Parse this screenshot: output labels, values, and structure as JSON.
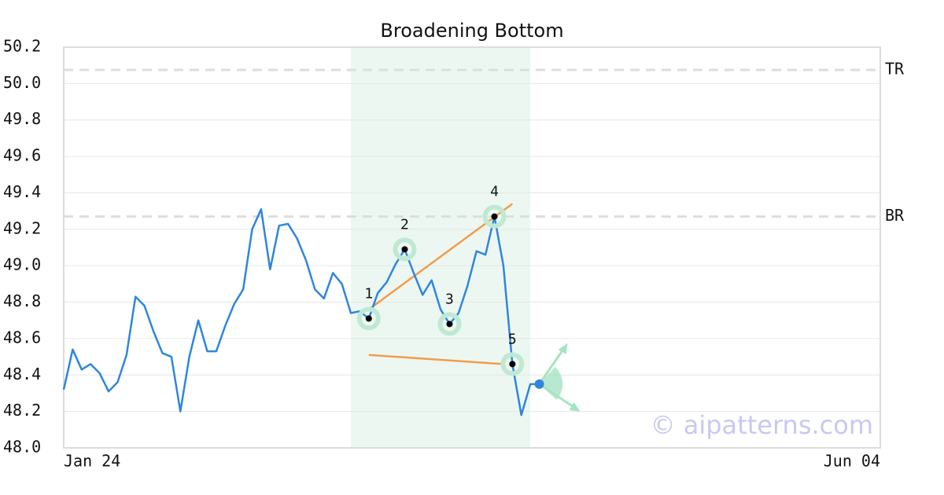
{
  "chart_data": {
    "type": "line",
    "title": "Broadening Bottom",
    "x": [
      0,
      1,
      2,
      3,
      4,
      5,
      6,
      7,
      8,
      9,
      10,
      11,
      12,
      13,
      14,
      15,
      16,
      17,
      18,
      19,
      20,
      21,
      22,
      23,
      24,
      25,
      26,
      27,
      28,
      29,
      30,
      31,
      32,
      33,
      34,
      35,
      36,
      37,
      38,
      39,
      40,
      41,
      42,
      43,
      44,
      45,
      46,
      47,
      48,
      49,
      50,
      51,
      52,
      53
    ],
    "series": [
      {
        "color": "#2e86de",
        "values": [
          48.32,
          48.54,
          48.43,
          48.46,
          48.41,
          48.31,
          48.36,
          48.51,
          48.83,
          48.78,
          48.64,
          48.52,
          48.5,
          48.2,
          48.5,
          48.7,
          48.53,
          48.53,
          48.67,
          48.79,
          48.87,
          49.2,
          49.31,
          48.98,
          49.22,
          49.23,
          49.15,
          49.03,
          48.87,
          48.82,
          48.96,
          48.9,
          48.74,
          48.75,
          48.71,
          48.85,
          48.91,
          49.01,
          49.09,
          48.96,
          48.84,
          48.92,
          48.76,
          48.68,
          48.74,
          48.89,
          49.08,
          49.06,
          49.27,
          49.0,
          48.46,
          48.18,
          48.35,
          48.35
        ]
      }
    ],
    "xlim": [
      0,
      91
    ],
    "xticks": [
      {
        "value": 0,
        "label": "Jan 24"
      },
      {
        "value": 91,
        "label": "Jun 04"
      }
    ],
    "ylim": [
      48.0,
      50.2
    ],
    "yticks": [
      {
        "value": 48.0,
        "label": "48.0"
      },
      48.2,
      48.4,
      48.6,
      48.8,
      {
        "value": 49.0,
        "label": "49.0"
      },
      49.2,
      49.4,
      49.6,
      49.8,
      {
        "value": 50.0,
        "label": "50.0"
      },
      50.2
    ],
    "grid": true,
    "pattern": {
      "shaded": [
        32,
        52
      ],
      "points": [
        {
          "label": "1",
          "x": 34,
          "y": 48.71
        },
        {
          "label": "2",
          "x": 38,
          "y": 49.09
        },
        {
          "label": "3",
          "x": 43,
          "y": 48.68
        },
        {
          "label": "4",
          "x": 48,
          "y": 49.27
        },
        {
          "label": "5",
          "x": 50,
          "y": 48.46
        }
      ],
      "trendlines": [
        {
          "x": [
            34,
            50
          ],
          "y": [
            48.76,
            49.34
          ]
        },
        {
          "x": [
            34,
            49
          ],
          "y": [
            48.51,
            48.46
          ]
        }
      ],
      "levels": [
        {
          "label": "TR",
          "value": 50.075
        },
        {
          "label": "BR",
          "value": 49.27
        }
      ]
    },
    "watermark": "© aipatterns.com"
  }
}
